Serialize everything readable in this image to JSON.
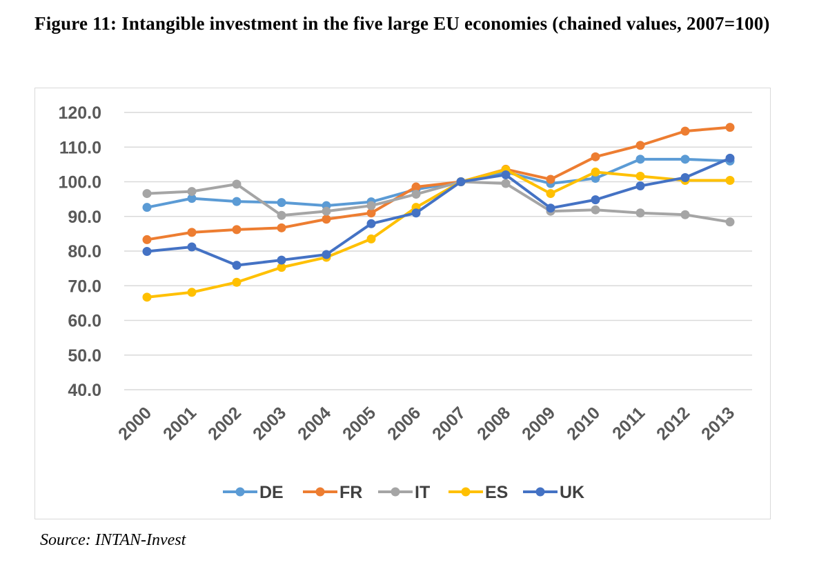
{
  "caption": {
    "text": "Figure 11: Intangible investment in the five large EU economies (chained values, 2007=100)"
  },
  "source": "Source: INTAN-Invest",
  "chart_data": {
    "type": "line",
    "title": "Figure 11: Intangible investment in the five large EU economies (chained values, 2007=100)",
    "xlabel": "",
    "ylabel": "",
    "categories": [
      "2000",
      "2001",
      "2002",
      "2003",
      "2004",
      "2005",
      "2006",
      "2007",
      "2008",
      "2009",
      "2010",
      "2011",
      "2012",
      "2013"
    ],
    "ylim": [
      40,
      120
    ],
    "yticks": [
      "40.0",
      "50.0",
      "60.0",
      "70.0",
      "80.0",
      "90.0",
      "100.0",
      "110.0",
      "120.0"
    ],
    "grid": true,
    "legend_position": "bottom",
    "series": [
      {
        "name": "DE",
        "color": "#5b9bd5",
        "values": [
          92.6,
          95.2,
          94.3,
          94.0,
          93.1,
          94.2,
          97.8,
          100.0,
          102.8,
          99.5,
          101.0,
          106.5,
          106.5,
          106.0
        ]
      },
      {
        "name": "FR",
        "color": "#ed7d31",
        "values": [
          83.3,
          85.4,
          86.2,
          86.7,
          89.2,
          91.0,
          98.5,
          100.0,
          103.6,
          100.7,
          107.2,
          110.5,
          114.6,
          115.7
        ]
      },
      {
        "name": "IT",
        "color": "#a5a5a5",
        "values": [
          96.6,
          97.2,
          99.3,
          90.3,
          91.5,
          93.1,
          96.4,
          100.0,
          99.5,
          91.5,
          91.9,
          91.0,
          90.5,
          88.4
        ]
      },
      {
        "name": "ES",
        "color": "#ffc000",
        "values": [
          66.7,
          68.1,
          71.0,
          75.3,
          78.2,
          83.5,
          92.6,
          100.0,
          103.5,
          96.6,
          102.8,
          101.6,
          100.4,
          100.4
        ]
      },
      {
        "name": "UK",
        "color": "#4472c4",
        "values": [
          79.9,
          81.2,
          75.9,
          77.4,
          79.0,
          87.9,
          91.0,
          100.0,
          102.0,
          92.4,
          94.8,
          98.8,
          101.2,
          106.8
        ]
      }
    ]
  }
}
